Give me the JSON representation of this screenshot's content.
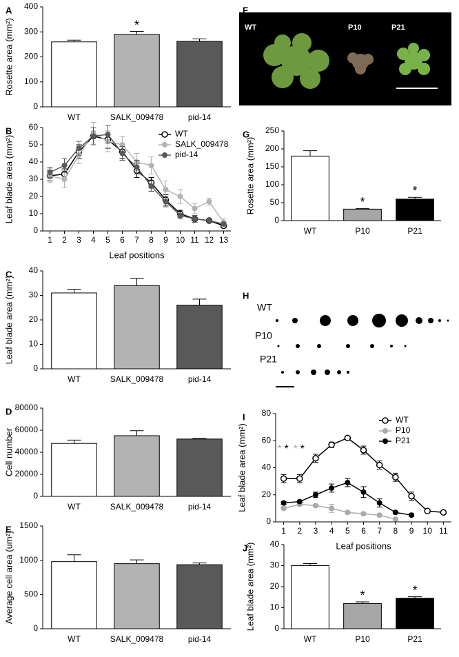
{
  "chart_data": [
    {
      "type": "bar",
      "panel": "A",
      "ylabel": "Rosette  area (mm²)",
      "categories": [
        "WT",
        "SALK_009478",
        "pid-14"
      ],
      "values": [
        260,
        290,
        262
      ],
      "errors": [
        7,
        12,
        10
      ],
      "colors": [
        "#ffffff",
        "#b3b3b3",
        "#595959"
      ],
      "annotations": [
        null,
        "*",
        null
      ],
      "ylim": [
        0,
        400
      ],
      "yticks": [
        0,
        100,
        200,
        300,
        400
      ]
    },
    {
      "type": "line",
      "panel": "B",
      "ylabel": "Leaf blade area (mm²)",
      "xlabel": "Leaf positions",
      "legend": "upper right",
      "x": [
        1,
        2,
        3,
        4,
        5,
        6,
        7,
        8,
        9,
        10,
        11,
        12,
        13
      ],
      "xlim": [
        0.5,
        13.5
      ],
      "xticks": [
        1,
        2,
        3,
        4,
        5,
        6,
        7,
        8,
        9,
        10,
        11,
        12,
        13
      ],
      "ylim": [
        0,
        60
      ],
      "yticks": [
        0,
        10,
        20,
        30,
        40,
        50,
        60
      ],
      "series": [
        {
          "name": "WT",
          "color": "#000000",
          "open": true,
          "values": [
            32,
            33,
            46,
            55,
            53,
            46,
            35,
            28,
            18,
            10,
            7,
            6,
            3
          ],
          "errors": [
            3,
            3,
            4,
            5,
            5,
            4,
            4,
            3,
            3,
            2,
            2,
            1,
            1
          ]
        },
        {
          "name": "SALK_009478",
          "color": "#b3b3b3",
          "open": false,
          "values": [
            32,
            30,
            44,
            57,
            52,
            50,
            40,
            38,
            24,
            20,
            13,
            17,
            5
          ],
          "errors": [
            4,
            5,
            5,
            6,
            6,
            5,
            5,
            5,
            5,
            4,
            3,
            2,
            2
          ]
        },
        {
          "name": "pid-14",
          "color": "#595959",
          "open": false,
          "values": [
            34,
            38,
            48,
            55,
            56,
            45,
            37,
            26,
            17,
            9,
            7,
            6,
            4
          ],
          "errors": [
            3,
            4,
            4,
            5,
            5,
            4,
            4,
            3,
            3,
            2,
            2,
            1,
            1
          ]
        }
      ]
    },
    {
      "type": "bar",
      "panel": "C",
      "ylabel": "Leaf blade area (mm²)",
      "categories": [
        "WT",
        "SALK_009478",
        "pid-14"
      ],
      "values": [
        31,
        34,
        26
      ],
      "errors": [
        1.5,
        3,
        2.5
      ],
      "colors": [
        "#ffffff",
        "#b3b3b3",
        "#595959"
      ],
      "ylim": [
        0,
        40
      ],
      "yticks": [
        0,
        10,
        20,
        30,
        40
      ]
    },
    {
      "type": "bar",
      "panel": "D",
      "ylabel": "Cell number",
      "categories": [
        "WT",
        "SALK_009478",
        "pid-14"
      ],
      "values": [
        48000,
        55000,
        52000
      ],
      "errors": [
        3000,
        4500,
        500
      ],
      "colors": [
        "#ffffff",
        "#b3b3b3",
        "#595959"
      ],
      "ylim": [
        0,
        80000
      ],
      "yticks": [
        0,
        20000,
        40000,
        60000,
        80000
      ]
    },
    {
      "type": "bar",
      "panel": "E",
      "ylabel": "Average cell area (um²)",
      "categories": [
        "WT",
        "SALK_009478",
        "pid-14"
      ],
      "values": [
        980,
        950,
        935
      ],
      "errors": [
        100,
        55,
        25
      ],
      "colors": [
        "#ffffff",
        "#b3b3b3",
        "#595959"
      ],
      "ylim": [
        0,
        1500
      ],
      "yticks": [
        0,
        500,
        1000,
        1500
      ]
    },
    {
      "type": "bar",
      "panel": "G",
      "ylabel": "Rosette area (mm²)",
      "categories": [
        "WT",
        "P10",
        "P21"
      ],
      "values": [
        180,
        32,
        60
      ],
      "errors": [
        15,
        2,
        5
      ],
      "colors": [
        "#ffffff",
        "#a6a6a6",
        "#000000"
      ],
      "annotations": [
        null,
        "*",
        "*"
      ],
      "ylim": [
        0,
        250
      ],
      "yticks": [
        0,
        50,
        100,
        150,
        200,
        250
      ]
    },
    {
      "type": "line",
      "panel": "I",
      "ylabel": "Leaf blade area (mm²)",
      "xlabel": "Leaf positions",
      "legend": "upper right",
      "x": [
        1,
        2,
        3,
        4,
        5,
        6,
        7,
        8,
        9,
        10,
        11
      ],
      "xlim": [
        0.5,
        11.5
      ],
      "xticks": [
        1,
        2,
        3,
        4,
        5,
        6,
        7,
        8,
        9,
        10,
        11
      ],
      "ylim": [
        0,
        80
      ],
      "yticks": [
        0,
        20,
        40,
        60,
        80
      ],
      "annotations": [
        {
          "text": "*",
          "color": "#aaaaaa",
          "x": 1
        },
        {
          "text": "*",
          "color": "#000000",
          "x": 1
        },
        {
          "text": "*",
          "color": "#aaaaaa",
          "x": 2
        },
        {
          "text": "*",
          "color": "#000000",
          "x": 2
        }
      ],
      "series": [
        {
          "name": "WT",
          "color": "#000000",
          "open": true,
          "values": [
            32,
            32,
            47,
            57,
            62,
            53,
            42,
            33,
            19,
            8,
            7
          ],
          "errors": [
            3,
            3,
            3,
            2,
            1,
            3,
            3,
            3,
            3,
            1,
            1
          ]
        },
        {
          "name": "P10",
          "color": "#aaaaaa",
          "open": false,
          "values": [
            10,
            13,
            12,
            10,
            7,
            6,
            5,
            2,
            null,
            null,
            null
          ],
          "errors": [
            1,
            1,
            1,
            3,
            1,
            1,
            1,
            1,
            null,
            null,
            null
          ]
        },
        {
          "name": "P21",
          "color": "#000000",
          "open": false,
          "values": [
            14,
            15,
            20,
            25,
            29,
            22,
            14,
            7,
            5,
            null,
            null
          ],
          "errors": [
            1,
            1,
            2,
            3,
            3,
            4,
            3,
            1,
            1,
            null,
            null
          ]
        }
      ]
    },
    {
      "type": "bar",
      "panel": "J",
      "ylabel": "Leaf blade area (mm²)",
      "categories": [
        "WT",
        "P10",
        "P21"
      ],
      "values": [
        30,
        12,
        14.5
      ],
      "errors": [
        1,
        0.8,
        0.7
      ],
      "colors": [
        "#ffffff",
        "#a6a6a6",
        "#000000"
      ],
      "annotations": [
        null,
        "*",
        "*"
      ],
      "ylim": [
        0,
        40
      ],
      "yticks": [
        0,
        10,
        20,
        30,
        40
      ]
    }
  ],
  "photos": [
    {
      "panel": "F",
      "labels": [
        "WT",
        "P10",
        "P21"
      ]
    },
    {
      "panel": "H",
      "labels": [
        "WT",
        "P10",
        "P21"
      ]
    }
  ]
}
